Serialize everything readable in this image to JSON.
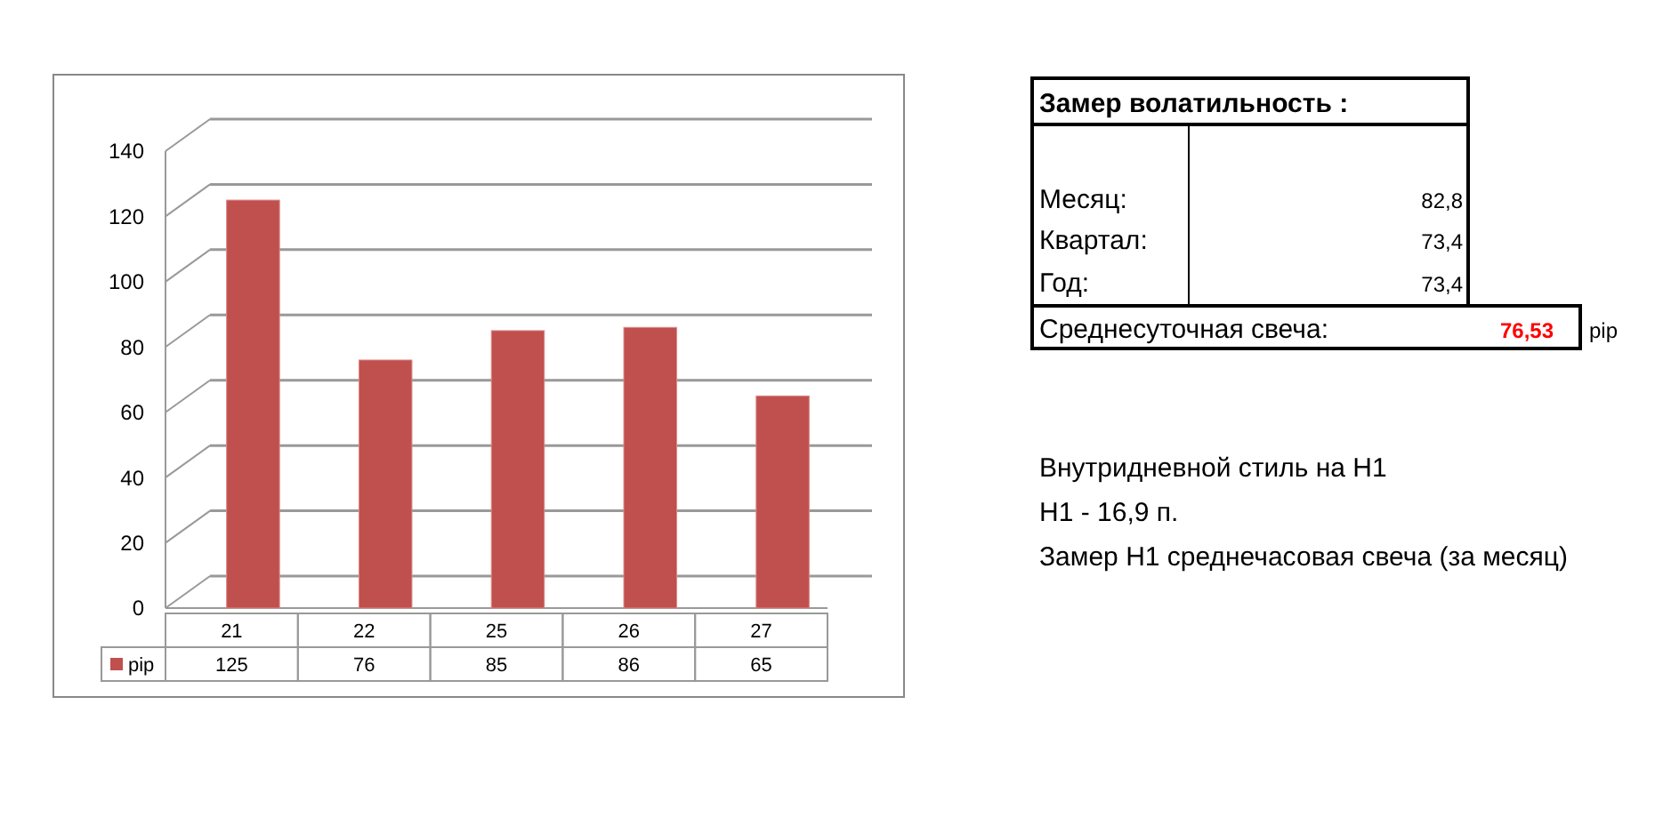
{
  "chart_data": [
    {
      "type": "bar",
      "categories": [
        "21",
        "22",
        "25",
        "26",
        "27"
      ],
      "series": [
        {
          "name": "pip",
          "color": "#c0504d",
          "values": [
            125,
            76,
            85,
            86,
            65
          ]
        }
      ],
      "ylim": [
        0,
        140
      ],
      "yticks": [
        0,
        20,
        40,
        60,
        80,
        100,
        120,
        140
      ],
      "grid": "y",
      "data_labels": true,
      "legend": "bottom"
    },
    {
      "type": "other",
      "annotations": [
        "Замер  волатильность  :",
        "Месяц:",
        "82,8",
        "Квартал:",
        "73,4",
        "Год:",
        "73,4",
        "Среднесуточная свеча:",
        "76,53",
        "pip",
        "Внутридневной стиль на H1",
        "H1 - 16,9 п.",
        "Замер H1 среднечасовая свеча (за месяц)"
      ]
    }
  ]
}
